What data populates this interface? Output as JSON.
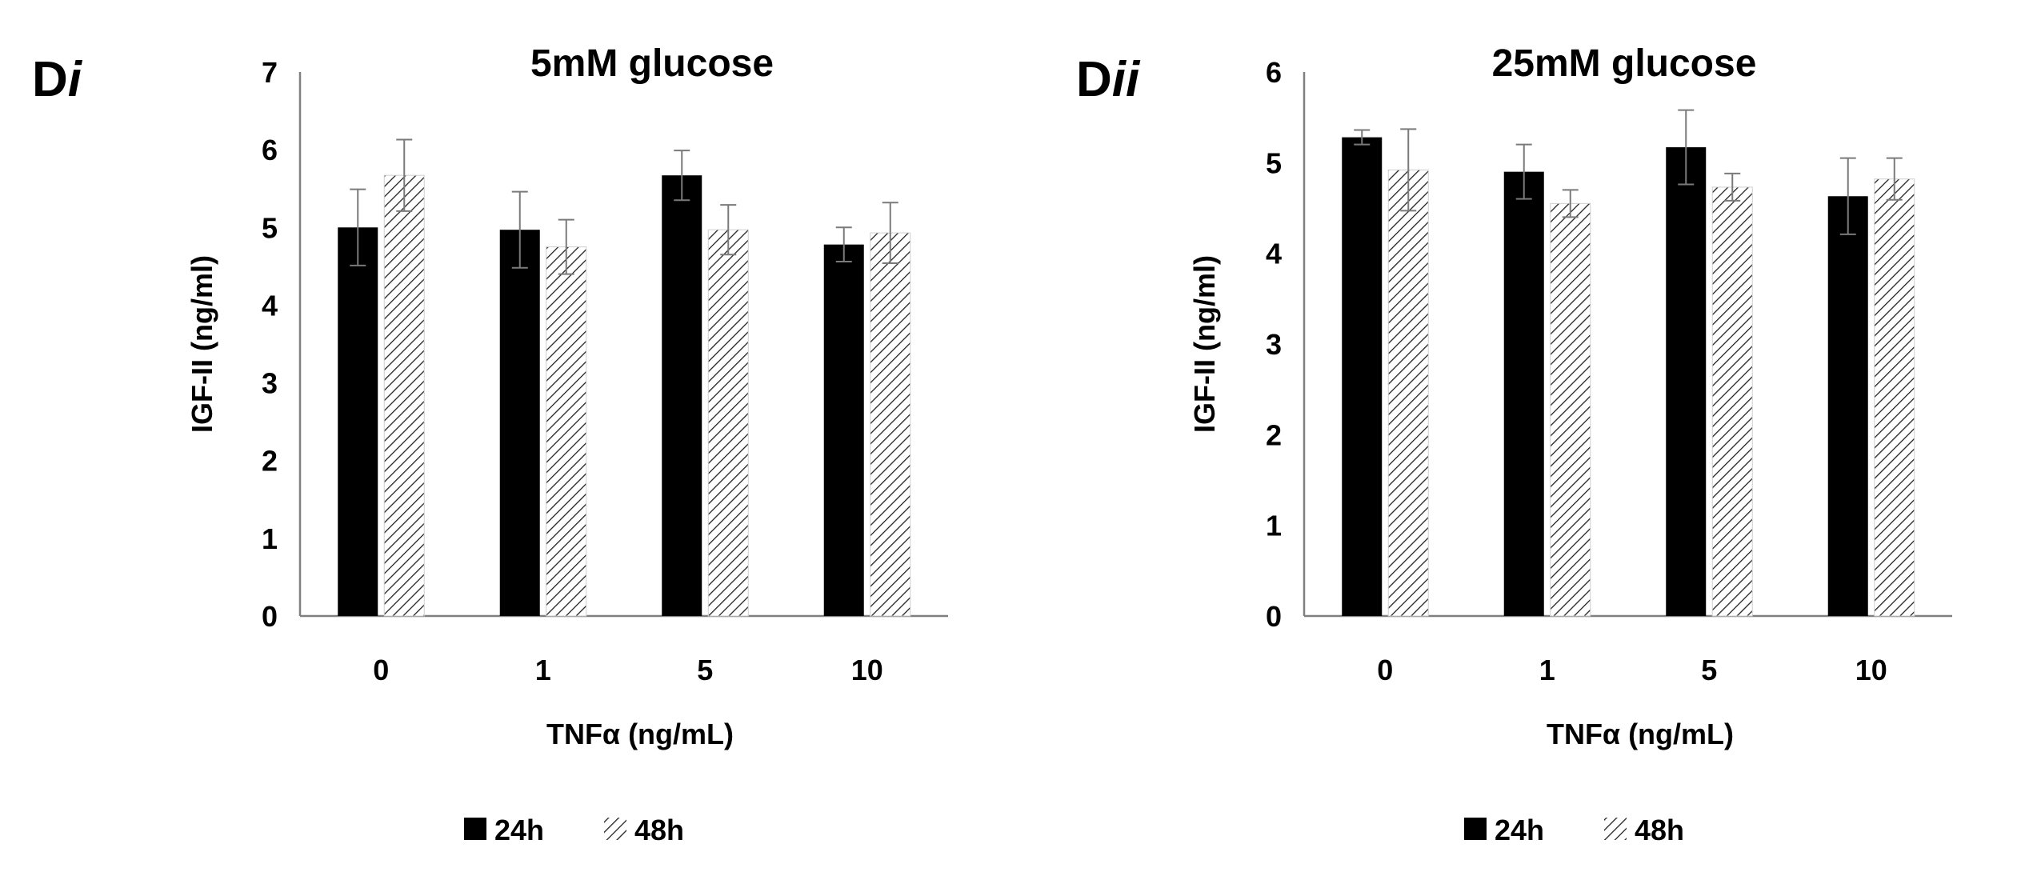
{
  "chart_data": [
    {
      "type": "bar",
      "panel_label": "D",
      "panel_label_suffix": "i",
      "title": "5mM glucose",
      "xlabel": "TNFα (ng/mL)",
      "ylabel": "IGF-II (ng/ml)",
      "categories": [
        "0",
        "1",
        "5",
        "10"
      ],
      "ylim": [
        0,
        7
      ],
      "yticks": [
        0,
        1,
        2,
        3,
        4,
        5,
        6,
        7
      ],
      "grid": false,
      "legend_position": "bottom",
      "series": [
        {
          "name": "24h",
          "fill": "solid",
          "color": "#000000",
          "values": [
            5.0,
            4.97,
            5.67,
            4.78
          ],
          "errors": [
            0.49,
            0.49,
            0.32,
            0.22
          ]
        },
        {
          "name": "48h",
          "fill": "hatched",
          "color": "#000000",
          "values": [
            5.67,
            4.75,
            4.97,
            4.93
          ],
          "errors": [
            0.46,
            0.35,
            0.32,
            0.39
          ]
        }
      ]
    },
    {
      "type": "bar",
      "panel_label": "D",
      "panel_label_suffix": "ii",
      "title": "25mM glucose",
      "xlabel": "TNFα (ng/mL)",
      "ylabel": "IGF-II (ng/ml)",
      "categories": [
        "0",
        "1",
        "5",
        "10"
      ],
      "ylim": [
        0,
        6
      ],
      "yticks": [
        0,
        1,
        2,
        3,
        4,
        5,
        6
      ],
      "grid": false,
      "legend_position": "bottom",
      "series": [
        {
          "name": "24h",
          "fill": "solid",
          "color": "#000000",
          "values": [
            5.28,
            4.9,
            5.17,
            4.63
          ],
          "errors": [
            0.08,
            0.3,
            0.41,
            0.42
          ]
        },
        {
          "name": "48h",
          "fill": "hatched",
          "color": "#000000",
          "values": [
            4.92,
            4.55,
            4.73,
            4.82
          ],
          "errors": [
            0.45,
            0.15,
            0.15,
            0.23
          ]
        }
      ]
    }
  ]
}
